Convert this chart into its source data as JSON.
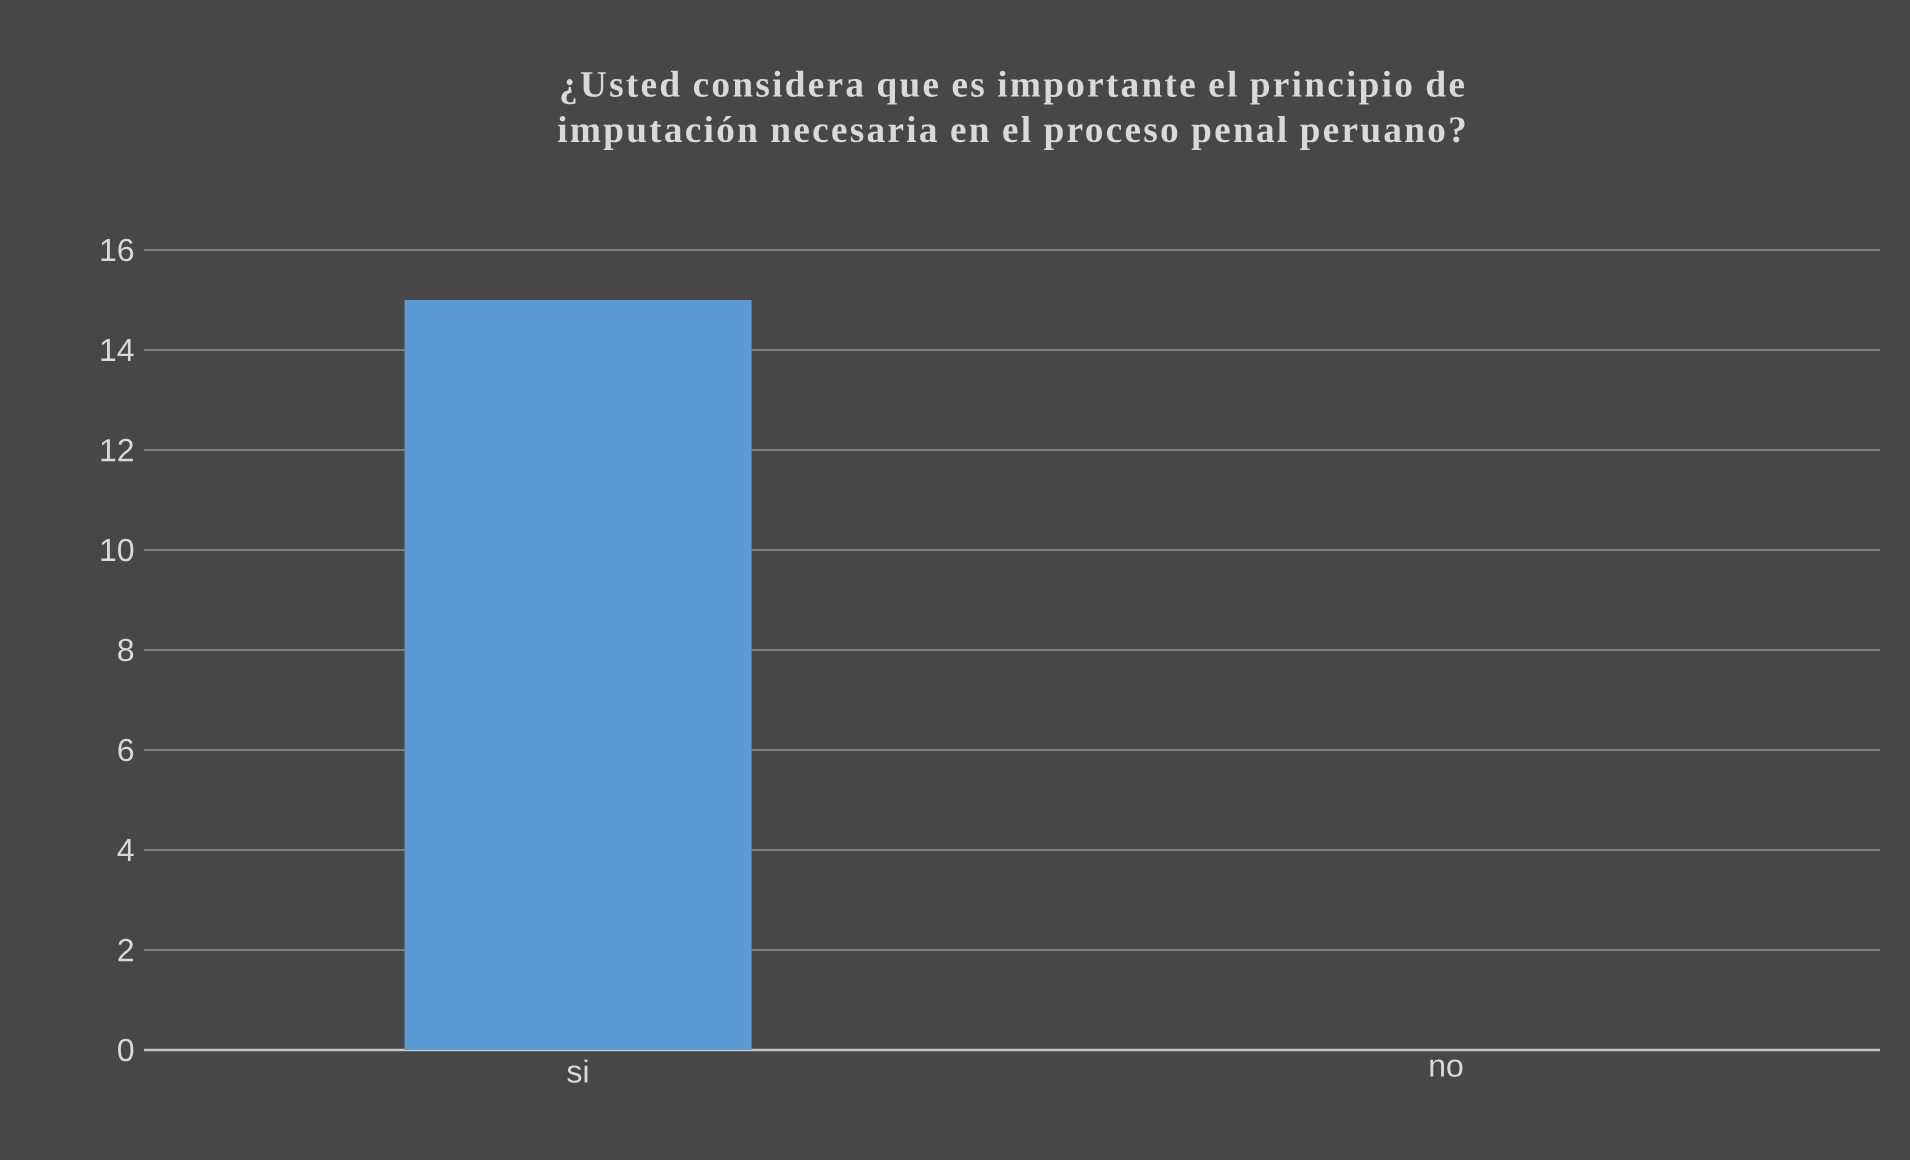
{
  "chart_data": {
    "type": "bar",
    "title": "¿Usted considera que es importante el principio de imputación necesaria en el proceso penal peruano?",
    "categories": [
      "si",
      "no"
    ],
    "values": [
      15,
      0
    ],
    "color": "#5b9bd5",
    "ylim": [
      0,
      16
    ],
    "yticks": [
      0,
      2,
      4,
      6,
      8,
      10,
      12,
      14,
      16
    ],
    "grid": "y"
  }
}
